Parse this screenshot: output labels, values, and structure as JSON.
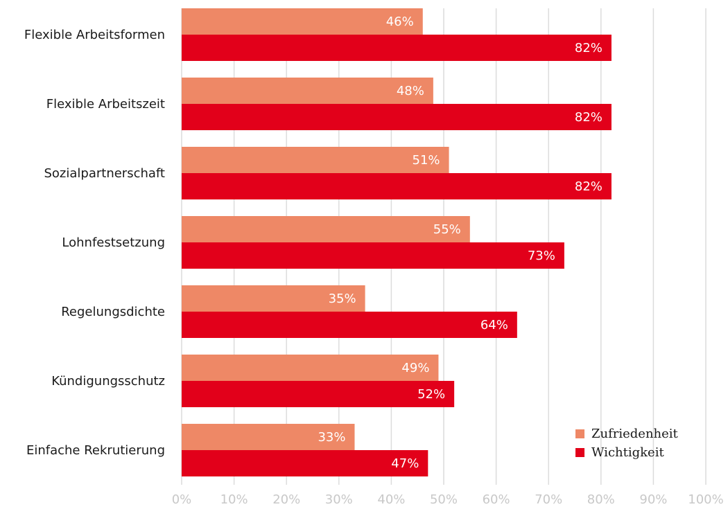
{
  "chart_data": {
    "type": "bar",
    "orientation": "horizontal",
    "categories": [
      "Flexible Arbeitsformen",
      "Flexible Arbeitszeit",
      "Sozialpartnerschaft",
      "Lohnfestsetzung",
      "Regelungsdichte",
      "Kündigungsschutz",
      "Einfache Rekrutierung"
    ],
    "series": [
      {
        "name": "Zufriedenheit",
        "color": "#ee8866",
        "values": [
          46,
          48,
          51,
          55,
          35,
          49,
          33
        ],
        "labels": [
          "46%",
          "48%",
          "51%",
          "55%",
          "35%",
          "49%",
          "33%"
        ]
      },
      {
        "name": "Wichtigkeit",
        "color": "#e2001a",
        "values": [
          82,
          82,
          82,
          73,
          64,
          52,
          47
        ],
        "labels": [
          "82%",
          "82%",
          "82%",
          "73%",
          "64%",
          "52%",
          "47%"
        ]
      }
    ],
    "xlim": [
      0,
      100
    ],
    "x_ticks": [
      "0%",
      "10%",
      "20%",
      "30%",
      "40%",
      "50%",
      "60%",
      "70%",
      "80%",
      "90%",
      "100%"
    ],
    "grid": true,
    "legend_position": "bottom-right",
    "title": "",
    "xlabel": "",
    "ylabel": ""
  }
}
